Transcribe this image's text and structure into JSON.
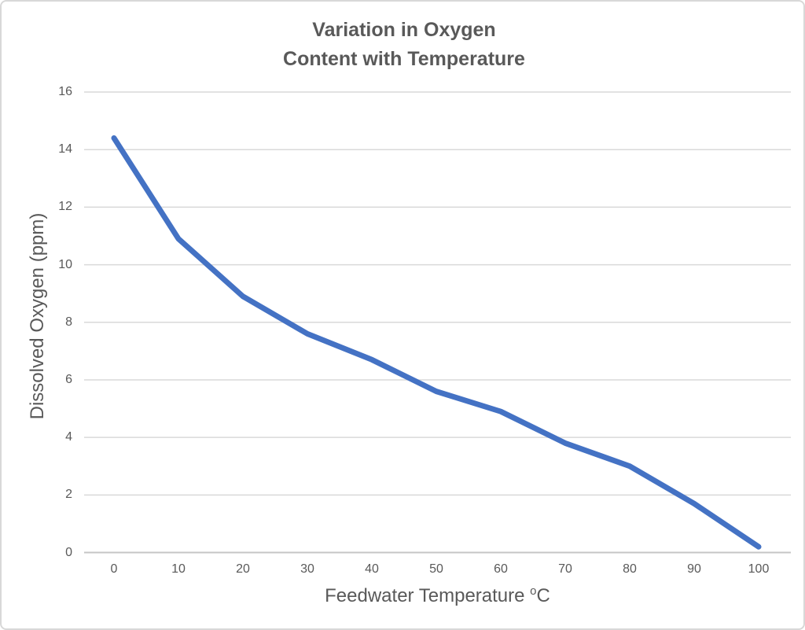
{
  "chart_data": {
    "type": "line",
    "title": "Variation in Oxygen Content with Temperature",
    "title_lines": [
      "Variation in Oxygen",
      "Content with Temperature"
    ],
    "xlabel_prefix": "Feedwater Temperature ",
    "xlabel_sup": "o",
    "xlabel_suffix": "C",
    "ylabel": "Dissolved Oxygen (ppm)",
    "x": [
      0,
      10,
      20,
      30,
      40,
      50,
      60,
      70,
      80,
      90,
      100
    ],
    "series": [
      {
        "name": "Dissolved Oxygen",
        "values": [
          14.4,
          10.9,
          8.9,
          7.6,
          6.7,
          5.6,
          4.9,
          3.8,
          3.0,
          1.7,
          0.2
        ]
      }
    ],
    "x_ticks": [
      "0",
      "10",
      "20",
      "30",
      "40",
      "50",
      "60",
      "70",
      "80",
      "90",
      "100"
    ],
    "y_ticks": [
      "0",
      "2",
      "4",
      "6",
      "8",
      "10",
      "12",
      "14",
      "16"
    ],
    "xlim": [
      0,
      100
    ],
    "ylim": [
      0,
      16
    ],
    "grid": "horizontal",
    "legend": "none",
    "line_color": "#4472C4",
    "text_color": "#595959",
    "gridline_color": "#D9D9D9",
    "axis_line_color": "#C6C6C6",
    "background": "#FFFFFF",
    "border_color": "#D8D8D8"
  }
}
